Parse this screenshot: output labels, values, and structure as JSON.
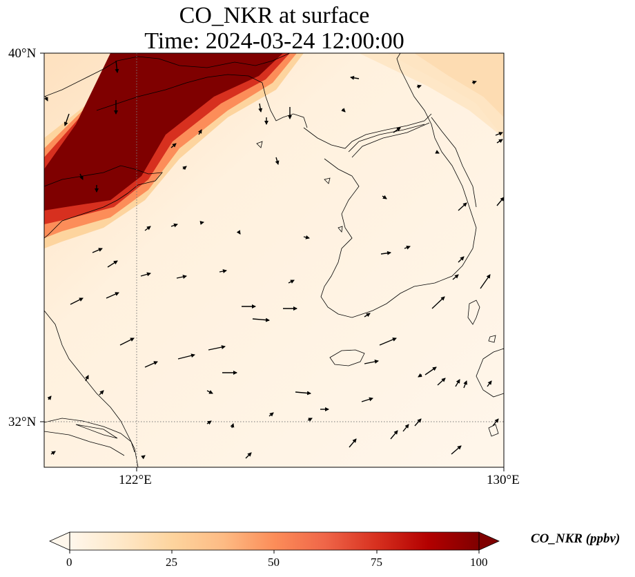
{
  "title": {
    "line1": "CO_NKR at surface",
    "line2": "Time: 2024-03-24 12:00:00"
  },
  "map": {
    "projection": "Plate Carree",
    "lon_range": [
      119,
      130
    ],
    "lat_range": [
      31,
      40
    ],
    "gridlines": {
      "lat": [
        32
      ],
      "lon": [
        122
      ],
      "style": "dotted"
    },
    "tick_labels": {
      "lat_top": "40°N",
      "lat_32": "32°N",
      "lon_122": "122°E",
      "lon_130": "130°E"
    },
    "wind_vectors": "shown"
  },
  "colorbar": {
    "label": "CO_NKR (ppbv)",
    "colormap": "OrRd",
    "ticks": [
      "0",
      "25",
      "50",
      "75",
      "100"
    ],
    "range": [
      0,
      100
    ],
    "extend": "both"
  },
  "colors": {
    "low": "#fff7ec",
    "mid": "#fdbb84",
    "high": "#d7301f",
    "max": "#7f0000"
  }
}
